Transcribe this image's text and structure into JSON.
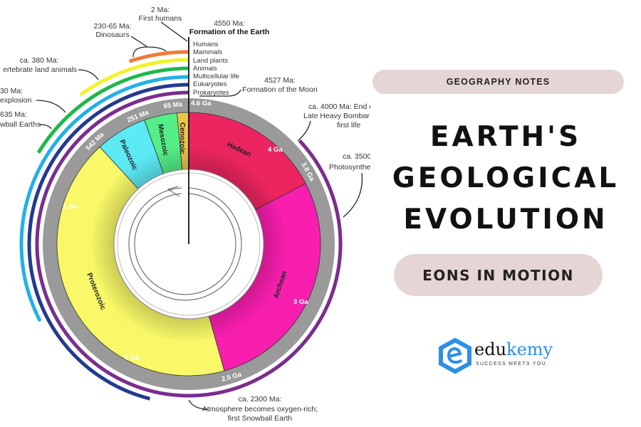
{
  "diagram": {
    "eons": [
      {
        "name": "Hadean",
        "start_ma": 4600,
        "end_ma": 3800,
        "color": "#ec2560"
      },
      {
        "name": "Archean",
        "start_ma": 3800,
        "end_ma": 2500,
        "color": "#f81eae"
      },
      {
        "name": "Proterozoic",
        "start_ma": 2500,
        "end_ma": 542,
        "color": "#f8f868"
      },
      {
        "name": "Paleozoic",
        "start_ma": 542,
        "end_ma": 251,
        "color": "#5ceaf5"
      },
      {
        "name": "Mesozoic",
        "start_ma": 251,
        "end_ma": 65,
        "color": "#55ee88"
      },
      {
        "name": "Cenozoic",
        "start_ma": 65,
        "end_ma": 0,
        "color": "#ecc448"
      }
    ],
    "ticks": {
      "t46": "4.6 Ga",
      "t4": "4 Ga",
      "t38": "3.8 Ga",
      "t3": "3 Ga",
      "t25": "2.5 Ga",
      "t2": "2 Ga",
      "t1": "1 Ga",
      "t542": "542 Ma",
      "t251": "251 Ma",
      "t65": "65 Ma"
    },
    "life": [
      {
        "label": "Humans",
        "color": "#c0392b",
        "start_ma": 2
      },
      {
        "label": "Mammals",
        "color": "#f07a3a",
        "start_ma": 230
      },
      {
        "label": "Land plants",
        "color": "#f2f22a",
        "start_ma": 460
      },
      {
        "label": "Animals",
        "color": "#1fb84a",
        "start_ma": 750
      },
      {
        "label": "Multicellular life",
        "color": "#21b0ea",
        "start_ma": 1500
      },
      {
        "label": "Eukaryotes",
        "color": "#233a8f",
        "start_ma": 2120
      },
      {
        "label": "Prokaryotes",
        "color": "#7b2d8e",
        "start_ma": 4000
      }
    ],
    "annotations": {
      "humans": [
        "2 Ma:",
        "First humans"
      ],
      "earth": [
        "4550 Ma:",
        "Formation of the Earth"
      ],
      "dinosaurs": [
        "230-65 Ma:",
        "Dinosaurs"
      ],
      "land_animals": [
        "ca. 380 Ma:",
        "ertebrate land animals"
      ],
      "cambrian": [
        "30 Ma:",
        "explosion"
      ],
      "snowball": [
        "635 Ma:",
        "wball Earths"
      ],
      "moon": [
        "4527 Ma:",
        "Formation of the Moon"
      ],
      "bombardment": [
        "ca. 4000 Ma: End o",
        "Late Heavy Bombar",
        "first life"
      ],
      "photosynthesis": [
        "ca. 3500",
        "Photosynthes"
      ],
      "oxygen": [
        "ca. 2300 Ma:",
        "Atmosphere becomes oxygen-rich;",
        "first Snowball Earth"
      ]
    }
  },
  "panel": {
    "badge": "GEOGRAPHY NOTES",
    "title_lines": [
      "EARTH'S",
      "GEOLOGICAL",
      "EVOLUTION"
    ],
    "subtitle": "EONS IN MOTION",
    "logo": {
      "name_a": "edu",
      "name_b": "kemy",
      "tagline": "SUCCESS MEETS YOU",
      "color": "#2b8fe8"
    }
  }
}
